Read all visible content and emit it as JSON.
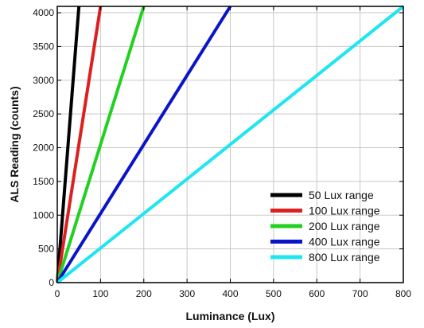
{
  "chart_data": {
    "type": "line",
    "title": "",
    "xlabel": "Luminance (Lux)",
    "ylabel": "ALS Reading (counts)",
    "xlim": [
      0,
      800
    ],
    "ylim": [
      0,
      4095
    ],
    "x_ticks": [
      0,
      100,
      200,
      300,
      400,
      500,
      600,
      700,
      800
    ],
    "y_ticks": [
      0,
      500,
      1000,
      1500,
      2000,
      2500,
      3000,
      3500,
      4000
    ],
    "grid": true,
    "legend_position": "bottom-right",
    "series": [
      {
        "name": "50 Lux range",
        "color": "#000000",
        "x": [
          0,
          50
        ],
        "y": [
          0,
          4095
        ]
      },
      {
        "name": "100 Lux range",
        "color": "#dd1f1f",
        "x": [
          0,
          100
        ],
        "y": [
          0,
          4095
        ]
      },
      {
        "name": "200 Lux range",
        "color": "#22d022",
        "x": [
          0,
          200
        ],
        "y": [
          0,
          4095
        ]
      },
      {
        "name": "400 Lux range",
        "color": "#0a14c8",
        "x": [
          0,
          400
        ],
        "y": [
          0,
          4095
        ]
      },
      {
        "name": "800 Lux range",
        "color": "#1ee6f0",
        "x": [
          0,
          800
        ],
        "y": [
          0,
          4095
        ]
      }
    ]
  }
}
